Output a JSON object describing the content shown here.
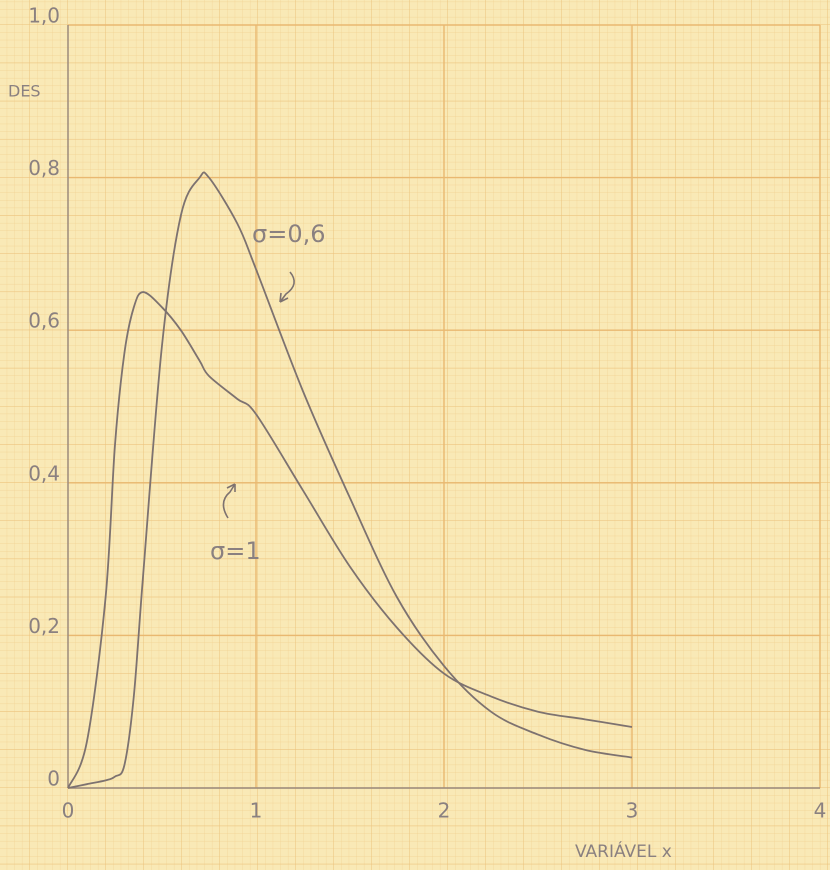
{
  "chart_data": {
    "type": "line",
    "y_label": "DES",
    "x_label": "VARIÁVEL x",
    "x": [
      0,
      0.1,
      0.2,
      0.25,
      0.3,
      0.35,
      0.4,
      0.5,
      0.6,
      0.7,
      0.75,
      0.9,
      1,
      1.25,
      1.5,
      1.75,
      2,
      2.25,
      2.5,
      2.75,
      3
    ],
    "series": [
      {
        "name": "σ=1",
        "color": "#7d7270",
        "values": [
          0,
          0.06,
          0.25,
          0.45,
          0.57,
          0.63,
          0.65,
          0.63,
          0.6,
          0.56,
          0.54,
          0.51,
          0.49,
          0.39,
          0.29,
          0.21,
          0.15,
          0.12,
          0.1,
          0.09,
          0.08
        ]
      },
      {
        "name": "σ=0,6",
        "color": "#7d7270",
        "values": [
          0,
          0.005,
          0.01,
          0.015,
          0.03,
          0.12,
          0.28,
          0.58,
          0.75,
          0.8,
          0.8,
          0.74,
          0.68,
          0.52,
          0.38,
          0.25,
          0.16,
          0.1,
          0.07,
          0.05,
          0.04
        ]
      }
    ],
    "xlim": [
      0,
      4
    ],
    "xticks": [
      0,
      1,
      2,
      3,
      4
    ],
    "ylim": [
      0,
      1
    ],
    "yticks": [
      0,
      {
        "value": 0.2,
        "label": "0,2"
      },
      {
        "value": 0.4,
        "label": "0,4"
      },
      {
        "value": 0.6,
        "label": "0,6"
      },
      {
        "value": 0.8,
        "label": "0,8"
      },
      {
        "value": 1,
        "label": "1,0"
      }
    ],
    "grid": true
  }
}
